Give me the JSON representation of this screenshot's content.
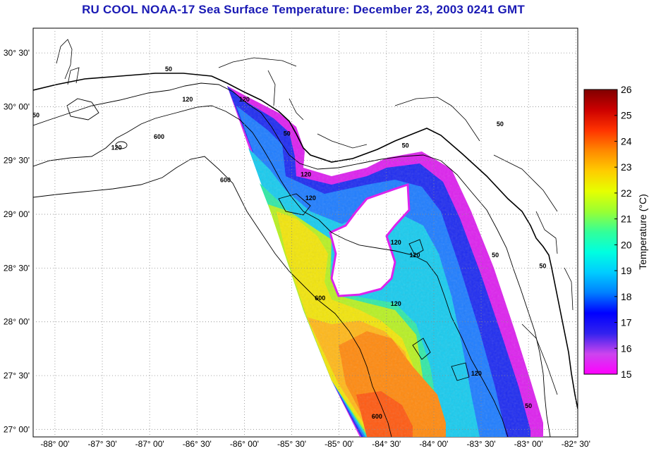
{
  "title": "RU COOL  NOAA-17  Sea Surface Temperature:  December 23, 2003 0241 GMT",
  "map": {
    "lat_labels": [
      {
        "text": "30° 30'",
        "lat": 30.5
      },
      {
        "text": "30° 00'",
        "lat": 30.0
      },
      {
        "text": "29° 30'",
        "lat": 29.5
      },
      {
        "text": "29° 00'",
        "lat": 29.0
      },
      {
        "text": "28° 30'",
        "lat": 28.5
      },
      {
        "text": "28° 00'",
        "lat": 28.0
      },
      {
        "text": "27° 30'",
        "lat": 27.5
      },
      {
        "text": "27° 00'",
        "lat": 27.0
      }
    ],
    "lon_labels": [
      {
        "text": "-88° 00'",
        "lon": -88.0
      },
      {
        "text": "-87° 30'",
        "lon": -87.5
      },
      {
        "text": "-87° 00'",
        "lon": -87.0
      },
      {
        "text": "-86° 30'",
        "lon": -86.5
      },
      {
        "text": "-86° 00'",
        "lon": -86.0
      },
      {
        "text": "-85° 30'",
        "lon": -85.5
      },
      {
        "text": "-85° 00'",
        "lon": -85.0
      },
      {
        "text": "-84° 30'",
        "lon": -84.5
      },
      {
        "text": "-84° 00'",
        "lon": -84.0
      },
      {
        "text": "-83° 30'",
        "lon": -83.5
      },
      {
        "text": "-83° 00'",
        "lon": -83.0
      },
      {
        "text": "-82° 30'",
        "lon": -82.5
      }
    ],
    "contour_labels": [
      {
        "text": "50",
        "lon": -86.8,
        "lat": 30.33
      },
      {
        "text": "120",
        "lon": -86.6,
        "lat": 30.05
      },
      {
        "text": "120",
        "lon": -86.0,
        "lat": 30.05
      },
      {
        "text": "600",
        "lon": -86.9,
        "lat": 29.7
      },
      {
        "text": "120",
        "lon": -87.35,
        "lat": 29.6
      },
      {
        "text": "50",
        "lon": -88.2,
        "lat": 29.9
      },
      {
        "text": "600",
        "lon": -86.2,
        "lat": 29.3
      },
      {
        "text": "50",
        "lon": -85.55,
        "lat": 29.73
      },
      {
        "text": "120",
        "lon": -85.35,
        "lat": 29.35
      },
      {
        "text": "120",
        "lon": -85.3,
        "lat": 29.13
      },
      {
        "text": "50",
        "lon": -84.3,
        "lat": 29.62
      },
      {
        "text": "50",
        "lon": -83.3,
        "lat": 29.82
      },
      {
        "text": "120",
        "lon": -84.4,
        "lat": 28.72
      },
      {
        "text": "120",
        "lon": -84.2,
        "lat": 28.6
      },
      {
        "text": "50",
        "lon": -83.35,
        "lat": 28.6
      },
      {
        "text": "50",
        "lon": -82.85,
        "lat": 28.5
      },
      {
        "text": "600",
        "lon": -85.2,
        "lat": 28.2
      },
      {
        "text": "120",
        "lon": -84.4,
        "lat": 28.15
      },
      {
        "text": "120",
        "lon": -83.55,
        "lat": 27.5
      },
      {
        "text": "600",
        "lon": -84.6,
        "lat": 27.1
      },
      {
        "text": "50",
        "lon": -83.0,
        "lat": 27.2
      }
    ]
  },
  "colorbar": {
    "label": "Temperature (°C)",
    "min": 15,
    "max": 26,
    "ticks": [
      "15",
      "16",
      "17",
      "18",
      "19",
      "20",
      "21",
      "22",
      "23",
      "24",
      "25",
      "26"
    ],
    "colors": [
      "#ff00ff",
      "#cc44ee",
      "#3322ee",
      "#0000ff",
      "#0080ff",
      "#00ccff",
      "#00ffe0",
      "#33ff99",
      "#99ff33",
      "#e6ff00",
      "#ffcc00",
      "#ff8800",
      "#ff3300",
      "#cc0000",
      "#800000"
    ]
  }
}
